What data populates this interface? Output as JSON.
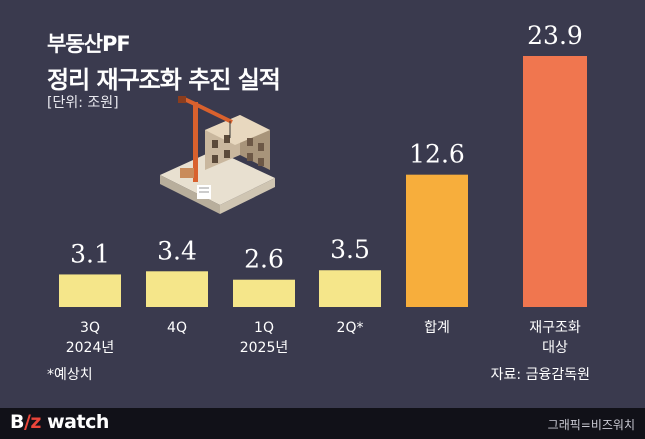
{
  "title_line1": "부동산PF",
  "title_line2": "정리 재구조화 추진 실적",
  "unit_label": "[단위: 조원]",
  "footnote": "*예상치",
  "source": "자료: 금융감독원",
  "footer": {
    "logo_b": "B",
    "logo_z": "/z",
    "logo_rest": "watch",
    "credit": "그래픽=비즈워치"
  },
  "colors": {
    "background": "#3a3a4e",
    "quarter_bar": "#f5e68a",
    "total_bar": "#f7ae3c",
    "target_bar": "#f0764f"
  },
  "chart_data": {
    "type": "bar",
    "categories": [
      "3Q\n2024년",
      "4Q",
      "1Q\n2025년",
      "2Q*",
      "합계",
      "재구조화\n대상"
    ],
    "values": [
      3.1,
      3.4,
      2.6,
      3.5,
      12.6,
      23.9
    ],
    "value_labels": [
      "3.1",
      "3.4",
      "2.6",
      "3.5",
      "12.6",
      "23.9"
    ],
    "title": "정리 재구조화 추진 실적",
    "ylabel": "",
    "ylim": [
      0,
      23.9
    ],
    "grid": false,
    "legend": "none"
  }
}
